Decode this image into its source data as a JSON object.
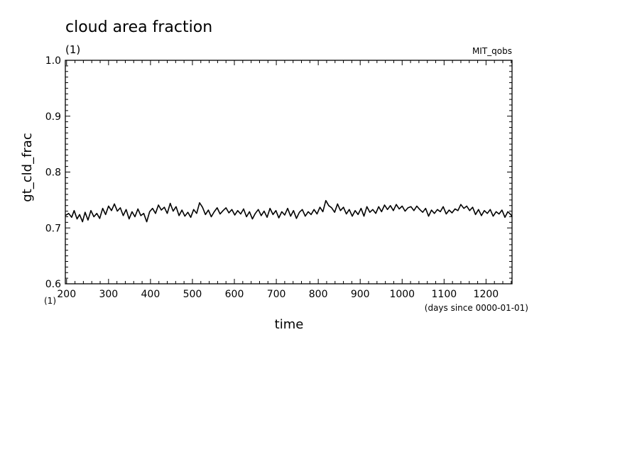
{
  "chart_data": {
    "type": "line",
    "title": "cloud area fraction",
    "units": "(1)",
    "dataset": "MIT_qobs",
    "xlabel": "time",
    "xunits": "(days since 0000-01-01)",
    "x_units_left": "(1)",
    "ylabel": "gt_cld_frac",
    "xlim": [
      197,
      1262
    ],
    "ylim": [
      0.6,
      1.0
    ],
    "x_ticks": [
      200,
      300,
      400,
      500,
      600,
      700,
      800,
      900,
      1000,
      1100,
      1200
    ],
    "y_ticks": [
      "0.6",
      "0.7",
      "0.8",
      "0.9",
      "1.0"
    ],
    "grid": false,
    "series": [
      {
        "color": "#000000",
        "x": [
          197,
          205,
          212,
          218,
          225,
          231,
          238,
          244,
          251,
          258,
          265,
          272,
          279,
          286,
          293,
          300,
          307,
          314,
          321,
          328,
          335,
          342,
          349,
          356,
          363,
          370,
          377,
          384,
          391,
          398,
          405,
          412,
          419,
          426,
          433,
          440,
          447,
          454,
          461,
          468,
          475,
          482,
          489,
          496,
          503,
          510,
          517,
          524,
          531,
          538,
          545,
          552,
          559,
          566,
          573,
          580,
          587,
          594,
          601,
          608,
          615,
          622,
          629,
          636,
          643,
          650,
          657,
          664,
          671,
          678,
          685,
          692,
          699,
          706,
          713,
          720,
          727,
          734,
          741,
          748,
          755,
          762,
          769,
          776,
          783,
          790,
          797,
          804,
          811,
          818,
          825,
          832,
          839,
          846,
          853,
          860,
          867,
          874,
          881,
          888,
          895,
          902,
          909,
          916,
          923,
          930,
          937,
          944,
          951,
          958,
          965,
          972,
          979,
          986,
          993,
          1000,
          1007,
          1014,
          1021,
          1028,
          1035,
          1042,
          1049,
          1056,
          1063,
          1070,
          1077,
          1084,
          1091,
          1098,
          1105,
          1112,
          1119,
          1126,
          1133,
          1140,
          1147,
          1154,
          1161,
          1168,
          1175,
          1182,
          1189,
          1196,
          1203,
          1210,
          1217,
          1224,
          1231,
          1238,
          1245,
          1252,
          1259,
          1262
        ],
        "y": [
          0.722,
          0.726,
          0.719,
          0.731,
          0.716,
          0.724,
          0.711,
          0.728,
          0.714,
          0.731,
          0.72,
          0.726,
          0.717,
          0.735,
          0.724,
          0.739,
          0.731,
          0.743,
          0.73,
          0.736,
          0.722,
          0.733,
          0.716,
          0.729,
          0.72,
          0.734,
          0.722,
          0.726,
          0.711,
          0.729,
          0.735,
          0.726,
          0.741,
          0.732,
          0.737,
          0.726,
          0.744,
          0.73,
          0.738,
          0.722,
          0.732,
          0.721,
          0.728,
          0.719,
          0.733,
          0.726,
          0.745,
          0.737,
          0.724,
          0.732,
          0.72,
          0.729,
          0.736,
          0.725,
          0.731,
          0.736,
          0.727,
          0.733,
          0.723,
          0.731,
          0.725,
          0.734,
          0.72,
          0.729,
          0.716,
          0.726,
          0.733,
          0.722,
          0.73,
          0.719,
          0.735,
          0.724,
          0.731,
          0.718,
          0.729,
          0.723,
          0.735,
          0.721,
          0.731,
          0.717,
          0.728,
          0.733,
          0.721,
          0.729,
          0.724,
          0.733,
          0.725,
          0.737,
          0.729,
          0.749,
          0.74,
          0.736,
          0.728,
          0.743,
          0.731,
          0.737,
          0.725,
          0.733,
          0.721,
          0.731,
          0.724,
          0.735,
          0.721,
          0.738,
          0.728,
          0.733,
          0.726,
          0.738,
          0.729,
          0.741,
          0.733,
          0.74,
          0.731,
          0.742,
          0.734,
          0.739,
          0.73,
          0.736,
          0.738,
          0.731,
          0.739,
          0.733,
          0.728,
          0.735,
          0.721,
          0.732,
          0.726,
          0.733,
          0.729,
          0.738,
          0.725,
          0.732,
          0.727,
          0.734,
          0.731,
          0.742,
          0.735,
          0.739,
          0.731,
          0.737,
          0.724,
          0.733,
          0.722,
          0.731,
          0.726,
          0.733,
          0.721,
          0.729,
          0.725,
          0.732,
          0.719,
          0.729,
          0.724,
          0.72
        ]
      }
    ]
  }
}
